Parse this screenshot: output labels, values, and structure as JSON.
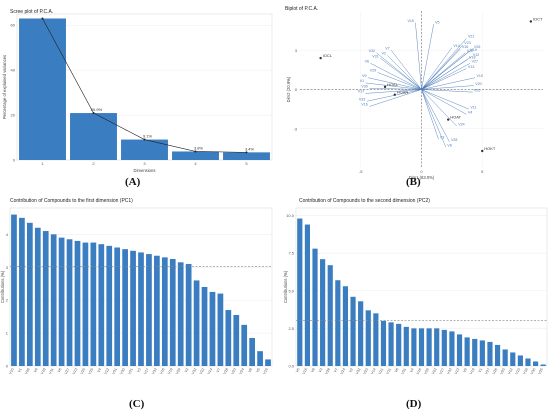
{
  "chart_data": [
    {
      "type": "bar",
      "title": "Scree plot of P.C.A.",
      "xlabel": "Dimensions",
      "ylabel": "Percentage of explained variances",
      "panel_label": "(A)",
      "categories": [
        "1",
        "2",
        "3",
        "4",
        "5"
      ],
      "values": [
        63.0,
        20.9,
        9.1,
        3.8,
        3.4
      ],
      "data_labels": [
        "",
        "20.9%",
        "9.1%",
        "3.8%",
        "3.4%"
      ],
      "line_overlay": true,
      "ylim": [
        0,
        65
      ],
      "yticks": [
        0,
        20,
        40,
        60
      ],
      "ytick_labels": [
        "0",
        "20",
        "40",
        "60"
      ],
      "bar_color": "#3a7dc1",
      "grid": true
    },
    {
      "type": "scatter",
      "title": "Biplot of P.C.A.",
      "xlabel": "Dim1 (63.0%)",
      "ylabel": "Dim2 (20.9%)",
      "panel_label": "(B)",
      "xlim": [
        -10,
        10
      ],
      "ylim": [
        -6,
        6
      ],
      "xticks": [
        -5,
        0,
        5
      ],
      "xtick_labels": [
        "-5",
        "0",
        "5"
      ],
      "yticks": [
        -3,
        0,
        3
      ],
      "ytick_labels": [
        "-3",
        "0",
        "3"
      ],
      "points": [
        {
          "label": "IOCT",
          "x": 9.0,
          "y": 5.2
        },
        {
          "label": "IOCL",
          "x": -8.3,
          "y": 2.4
        },
        {
          "label": "HOAL",
          "x": -3.0,
          "y": 0.2
        },
        {
          "label": "HOAN",
          "x": -2.2,
          "y": -0.4
        },
        {
          "label": "HOAT",
          "x": 2.2,
          "y": -2.3
        },
        {
          "label": "HOKT",
          "x": 5.0,
          "y": -4.7
        }
      ],
      "vectors": [
        {
          "label": "V15",
          "x": -0.5,
          "y": 5.1
        },
        {
          "label": "V5",
          "x": 1.0,
          "y": 5.0
        },
        {
          "label": "V21",
          "x": 3.7,
          "y": 3.9
        },
        {
          "label": "V14",
          "x": 2.5,
          "y": 3.2
        },
        {
          "label": "V16",
          "x": 3.2,
          "y": 3.1
        },
        {
          "label": "V22",
          "x": 3.6,
          "y": 2.8
        },
        {
          "label": "V26",
          "x": 4.2,
          "y": 3.1
        },
        {
          "label": "V23",
          "x": 3.4,
          "y": 3.4
        },
        {
          "label": "V19",
          "x": 3.9,
          "y": 2.9
        },
        {
          "label": "V12",
          "x": 4.1,
          "y": 2.5
        },
        {
          "label": "V18",
          "x": 3.8,
          "y": 2.3
        },
        {
          "label": "V27",
          "x": 4.0,
          "y": 2.0
        },
        {
          "label": "V13",
          "x": 3.7,
          "y": 1.6
        },
        {
          "label": "V10",
          "x": 4.4,
          "y": 0.9
        },
        {
          "label": "V20",
          "x": 4.3,
          "y": 0.3
        },
        {
          "label": "V25",
          "x": 4.2,
          "y": -0.2
        },
        {
          "label": "V11",
          "x": 3.9,
          "y": -1.5
        },
        {
          "label": "V4",
          "x": 3.7,
          "y": -1.9
        },
        {
          "label": "V24",
          "x": 2.9,
          "y": -2.8
        },
        {
          "label": "V3",
          "x": 1.4,
          "y": -3.8
        },
        {
          "label": "V28",
          "x": 2.3,
          "y": -4.0
        },
        {
          "label": "V8",
          "x": 2.0,
          "y": -4.4
        },
        {
          "label": "V7",
          "x": -2.5,
          "y": 3.0
        },
        {
          "label": "V2",
          "x": -2.8,
          "y": 2.6
        },
        {
          "label": "V32",
          "x": -3.7,
          "y": 2.8
        },
        {
          "label": "V31",
          "x": -3.4,
          "y": 2.4
        },
        {
          "label": "V6",
          "x": -4.2,
          "y": 2.0
        },
        {
          "label": "V29",
          "x": -3.6,
          "y": 1.3
        },
        {
          "label": "V9",
          "x": -4.4,
          "y": 0.9
        },
        {
          "label": "V1",
          "x": -4.6,
          "y": 0.5
        },
        {
          "label": "V30",
          "x": -4.3,
          "y": 0.1
        },
        {
          "label": "V17",
          "x": -4.6,
          "y": -0.3
        },
        {
          "label": "V33",
          "x": -4.5,
          "y": -0.9
        },
        {
          "label": "V16b",
          "display": "V16",
          "x": -4.3,
          "y": -1.3
        }
      ],
      "hline_dashed": 0,
      "vline_dashed": 0,
      "point_color": "#333333",
      "vector_color": "#4a7ab8"
    },
    {
      "type": "bar",
      "title": "Contribution of Compounds to the first dimension (PC1)",
      "ylabel": "Contributions (%)",
      "panel_label": "(C)",
      "categories": [
        "V10",
        "V1",
        "V26",
        "V9",
        "V18",
        "V11",
        "V6",
        "V27",
        "V13",
        "V20",
        "V25",
        "V4",
        "V12",
        "V31",
        "V30",
        "V21",
        "V3",
        "V17",
        "V33",
        "V16",
        "V19",
        "V29",
        "V2",
        "V32",
        "V22",
        "V14",
        "V7",
        "V28",
        "V23",
        "V24",
        "V8",
        "V5",
        "V15"
      ],
      "values": [
        4.6,
        4.5,
        4.35,
        4.2,
        4.1,
        4.0,
        3.9,
        3.85,
        3.8,
        3.75,
        3.75,
        3.7,
        3.65,
        3.6,
        3.55,
        3.5,
        3.45,
        3.4,
        3.35,
        3.3,
        3.25,
        3.15,
        3.1,
        2.6,
        2.4,
        2.25,
        2.2,
        1.7,
        1.55,
        1.25,
        0.85,
        0.45,
        0.2
      ],
      "ylim": [
        0,
        4.8
      ],
      "yticks": [
        0,
        1,
        2,
        3,
        4
      ],
      "ytick_labels": [
        "0",
        "1",
        "2",
        "3",
        "4"
      ],
      "reference_line": 3.03,
      "bar_color": "#3a7dc1",
      "grid": true
    },
    {
      "type": "bar",
      "title": "Contribution of Compounds to the second dimension (PC2)",
      "ylabel": "Contributions (%)",
      "panel_label": "(D)",
      "categories": [
        "V5",
        "V15",
        "V8",
        "V3",
        "V28",
        "V7",
        "V24",
        "V2",
        "V32",
        "V23",
        "V14",
        "V21",
        "V11",
        "V6",
        "V31",
        "V4",
        "V16",
        "V29",
        "V22",
        "V17",
        "V33",
        "V13",
        "V9",
        "V19",
        "V1",
        "V27",
        "V26",
        "V20",
        "V12",
        "V10",
        "V18",
        "V30",
        "V25"
      ],
      "values": [
        9.8,
        9.4,
        7.8,
        7.1,
        6.7,
        5.7,
        5.3,
        4.6,
        4.3,
        3.7,
        3.5,
        3.0,
        2.9,
        2.8,
        2.6,
        2.5,
        2.5,
        2.5,
        2.5,
        2.4,
        2.3,
        2.1,
        1.9,
        1.8,
        1.7,
        1.6,
        1.4,
        1.1,
        0.9,
        0.7,
        0.5,
        0.3,
        0.1
      ],
      "ylim": [
        0,
        10.5
      ],
      "yticks": [
        0,
        2.5,
        5,
        7.5,
        10
      ],
      "ytick_labels": [
        "0.0",
        "2.5",
        "5.0",
        "7.5",
        "10.0"
      ],
      "reference_line": 3.03,
      "bar_color": "#3a7dc1",
      "grid": true
    }
  ]
}
